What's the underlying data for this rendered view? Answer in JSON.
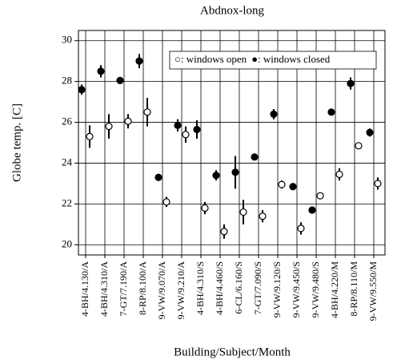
{
  "chart_data": {
    "type": "errorbar",
    "title": "Abdnox-long",
    "xlabel": "Building/Subject/Month",
    "ylabel": "Globe temp. [C]",
    "categories": [
      "4-BH/4.130/A",
      "4-BH/4.310/A",
      "7-GT/7.190/A",
      "8-RP/8.100/A",
      "9-VW/9.070/A",
      "9-VW/9.210/A",
      "4-BH/4.310/S",
      "4-BH/4.460/S",
      "6-CL/6.160/S",
      "7-GT/7.090/S",
      "9-VW/9.120/S",
      "9-VW/9.450/S",
      "9-VW/9.480/S",
      "4-BH/4.220/M",
      "8-RP/8.110/M",
      "9-VW/9.550/M"
    ],
    "series": [
      {
        "name": "●: windows closed",
        "color": "#000000",
        "marker": "filled",
        "values": [
          27.6,
          28.5,
          28.05,
          29.0,
          23.3,
          25.85,
          25.65,
          23.4,
          23.55,
          24.3,
          26.4,
          22.85,
          21.7,
          26.5,
          27.9,
          25.5
        ],
        "errors": [
          0.25,
          0.3,
          0.15,
          0.35,
          0.05,
          0.3,
          0.45,
          0.25,
          0.8,
          0.1,
          0.25,
          0.1,
          0.1,
          0.1,
          0.3,
          0.2
        ]
      },
      {
        "name": "○: windows open",
        "color": "#000000",
        "marker": "open",
        "values": [
          25.3,
          25.8,
          26.05,
          26.5,
          22.1,
          25.4,
          21.8,
          20.65,
          21.6,
          21.4,
          22.95,
          20.8,
          22.4,
          23.45,
          24.85,
          23.0
        ],
        "errors": [
          0.55,
          0.6,
          0.35,
          0.7,
          0.25,
          0.4,
          0.3,
          0.35,
          0.6,
          0.3,
          0.2,
          0.3,
          0.1,
          0.3,
          0.1,
          0.3
        ]
      }
    ],
    "ylim": [
      19.5,
      30.5
    ],
    "yticks": [
      20,
      22,
      24,
      26,
      28,
      30
    ],
    "grid": true
  }
}
